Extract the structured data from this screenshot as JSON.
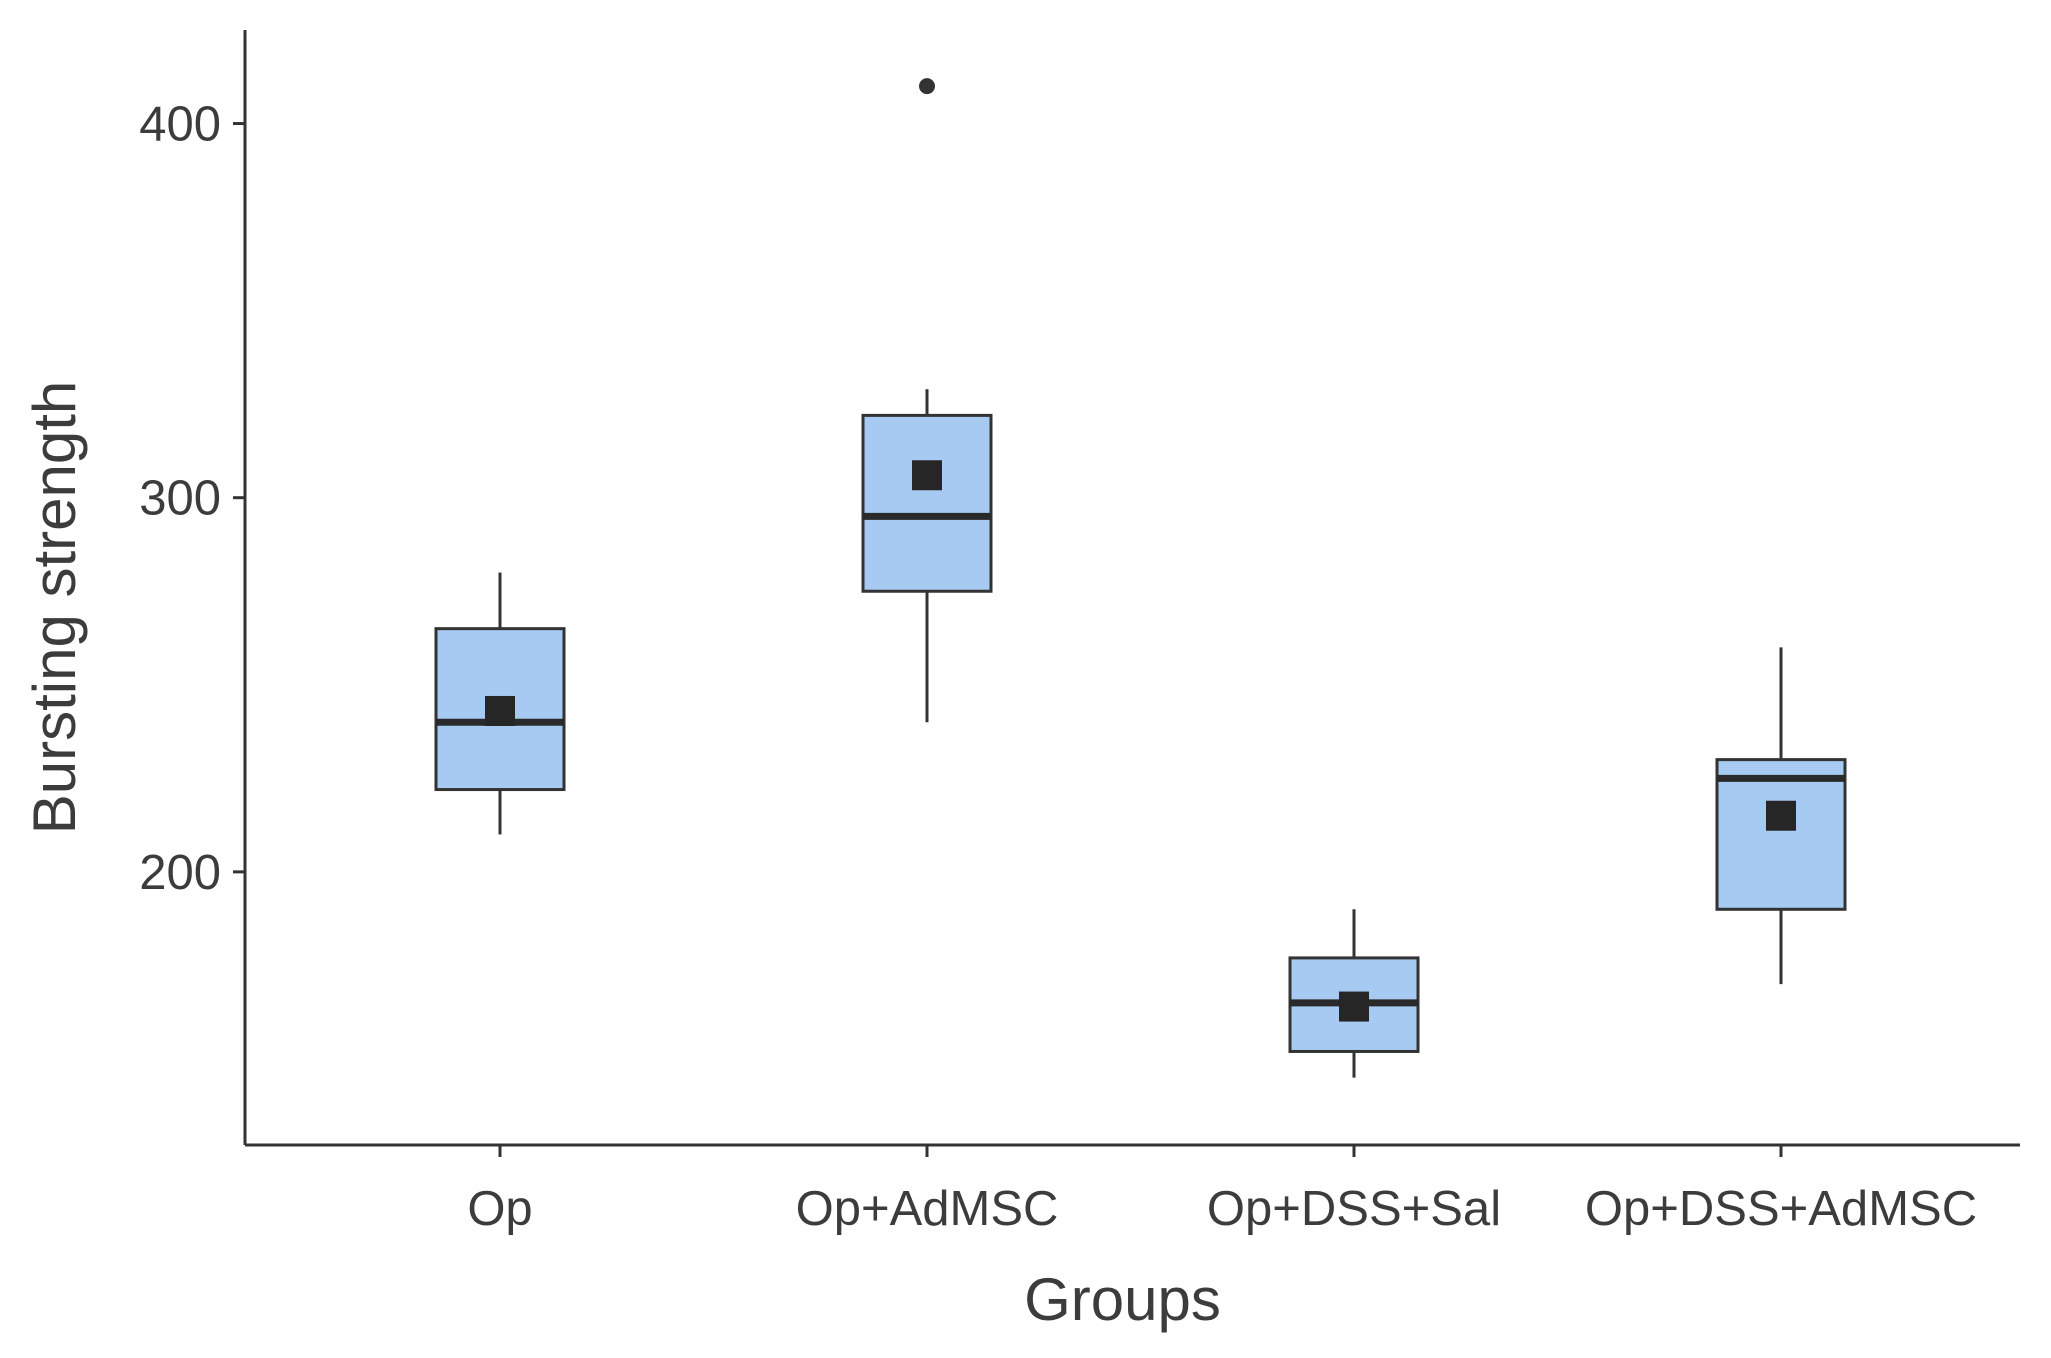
{
  "colors": {
    "box_fill": "#a6caf1",
    "box_stroke": "#333333",
    "median": "#2a2a2a",
    "mean_marker": "#262626",
    "axis": "#333333",
    "text": "#3c3c3c"
  },
  "chart_data": {
    "type": "boxplot",
    "title": "",
    "xlabel": "Groups",
    "ylabel": "Bursting strength",
    "ylim": [
      127,
      425
    ],
    "yticks": [
      200,
      300,
      400
    ],
    "ytick_labels": [
      "200",
      "300",
      "400"
    ],
    "grid": false,
    "legend": "none",
    "categories": [
      "Op",
      "Op+AdMSC",
      "Op+DSS+Sal",
      "Op+DSS+AdMSC"
    ],
    "boxes": [
      {
        "name": "Op",
        "whisker_low": 210,
        "q1": 222,
        "median": 240,
        "q3": 265,
        "whisker_high": 280,
        "mean": 243,
        "outliers": []
      },
      {
        "name": "Op+AdMSC",
        "whisker_low": 240,
        "q1": 275,
        "median": 295,
        "q3": 322,
        "whisker_high": 329,
        "mean": 306,
        "outliers": [
          410
        ]
      },
      {
        "name": "Op+DSS+Sal",
        "whisker_low": 145,
        "q1": 152,
        "median": 165,
        "q3": 177,
        "whisker_high": 190,
        "mean": 164,
        "outliers": []
      },
      {
        "name": "Op+DSS+AdMSC",
        "whisker_low": 170,
        "q1": 190,
        "median": 225,
        "q3": 230,
        "whisker_high": 260,
        "mean": 215,
        "outliers": []
      }
    ]
  }
}
